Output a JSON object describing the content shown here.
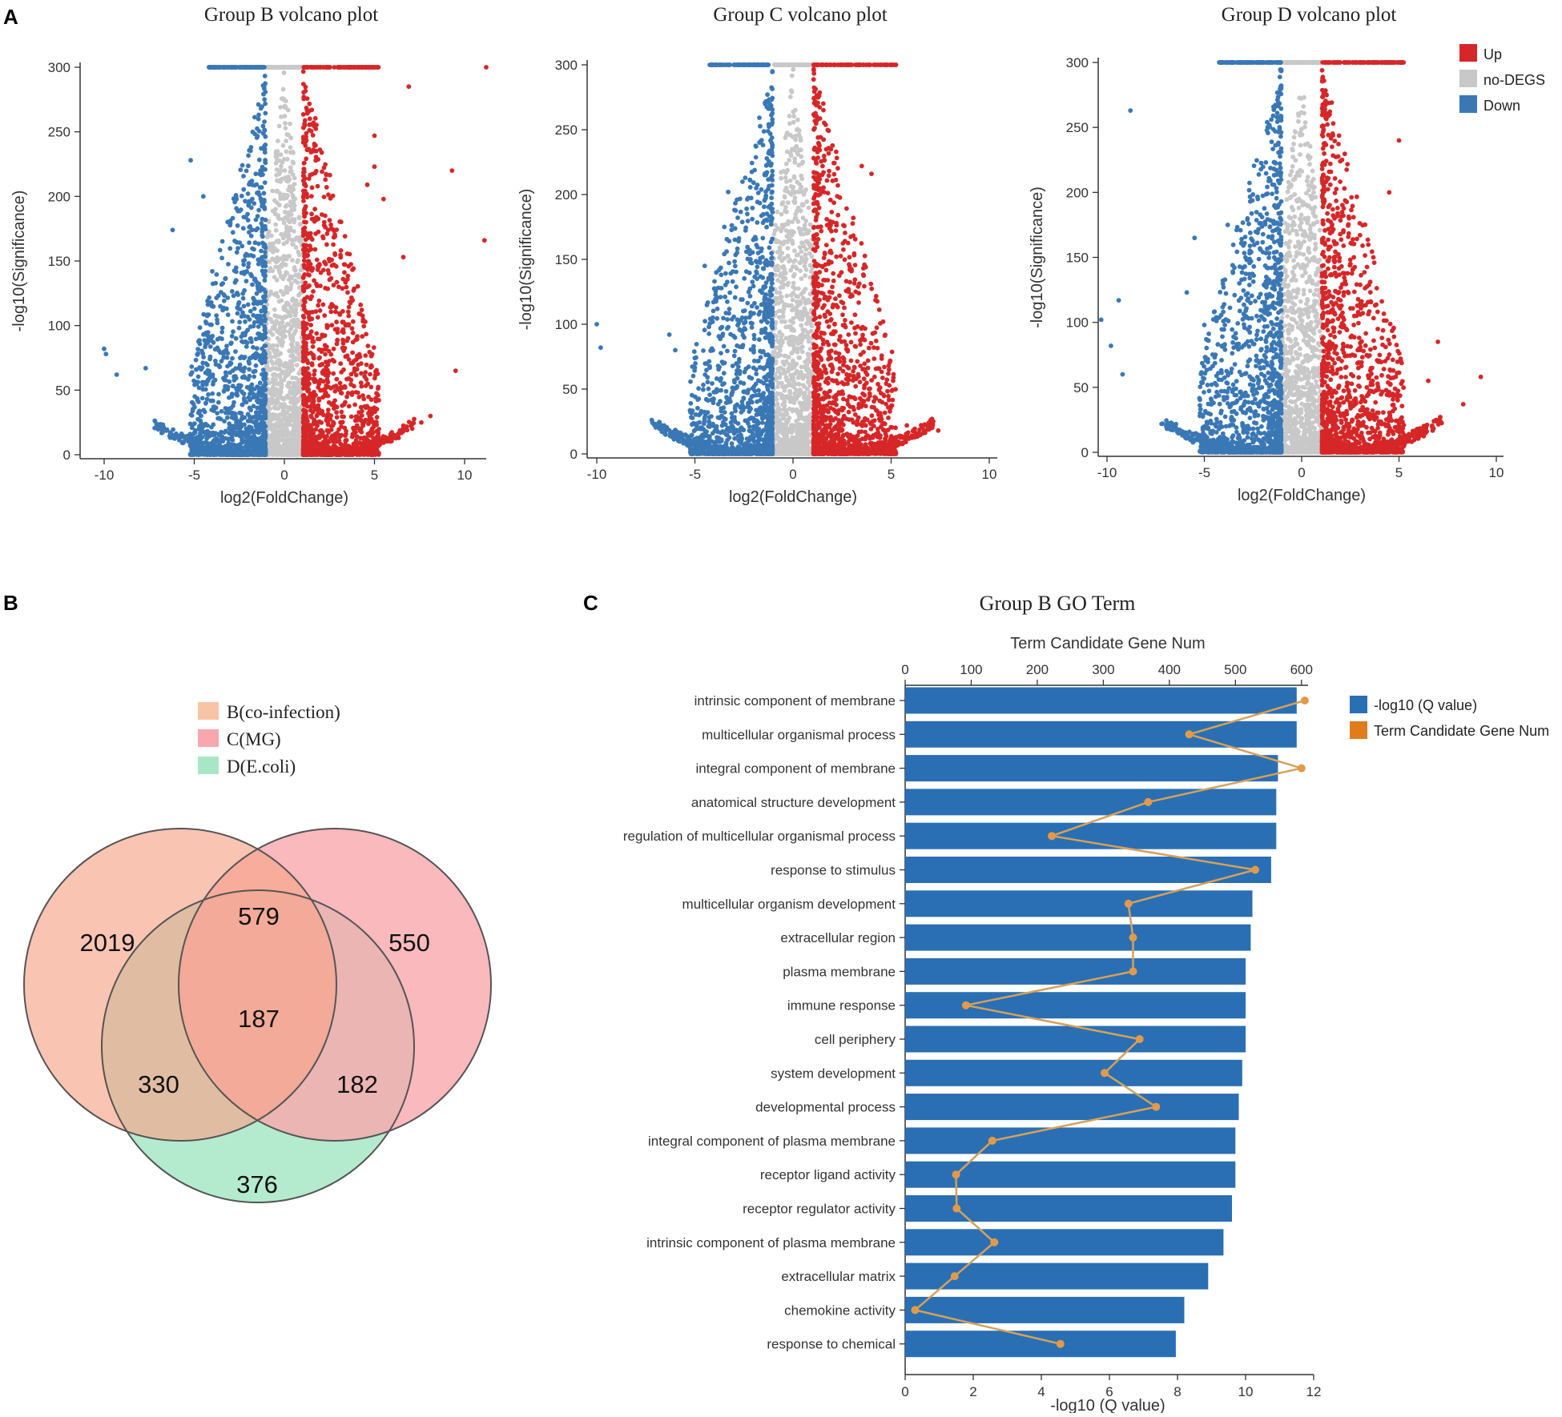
{
  "colors": {
    "up": "#d62728",
    "nodegs": "#c8c8c8",
    "down": "#3a78b5",
    "venn_b": "#f7c4a5",
    "venn_c": "#f7a7ad",
    "venn_d": "#a7e7c6",
    "bar": "#2a6fb3",
    "line": "#e07b1e",
    "line_stroke": "#d4a15a"
  },
  "panels": {
    "a": "A",
    "b": "B",
    "c": "C"
  },
  "volcano_legend": [
    "Up",
    "no-DEGS",
    "Down"
  ],
  "chart_data": [
    {
      "type": "scatter",
      "id": "volcano-b",
      "title": "Group B volcano plot",
      "xlabel": "log2(FoldChange)",
      "ylabel": "-log10(Significance)",
      "xlim": [
        -11,
        11.2
      ],
      "ylim": [
        0,
        305
      ],
      "xticks": [
        -10,
        -5,
        0,
        5,
        10
      ],
      "yticks": [
        0,
        50,
        100,
        150,
        200,
        250,
        300
      ],
      "xright": 11.2,
      "seed": 11,
      "outliers_up": [
        [
          11.2,
          300
        ],
        [
          11.1,
          166
        ],
        [
          9.3,
          220
        ],
        [
          9.5,
          65
        ],
        [
          6.9,
          285
        ],
        [
          6.6,
          153
        ],
        [
          5,
          247
        ],
        [
          5,
          223
        ],
        [
          5.5,
          198
        ],
        [
          4.6,
          209
        ],
        [
          8.1,
          30
        ],
        [
          7.6,
          25
        ]
      ],
      "outliers_down": [
        [
          -10,
          82
        ],
        [
          -9.9,
          78
        ],
        [
          -9.3,
          62
        ],
        [
          -7.7,
          67
        ],
        [
          -6.2,
          174
        ],
        [
          -5.2,
          228
        ],
        [
          -4.5,
          200
        ],
        [
          -4,
          142
        ],
        [
          -3,
          181
        ]
      ]
    },
    {
      "type": "scatter",
      "id": "volcano-c",
      "title": "Group C volcano plot",
      "xlabel": "log2(FoldChange)",
      "ylabel": "-log10(Significance)",
      "xlim": [
        -10.2,
        10.4
      ],
      "ylim": [
        0,
        305
      ],
      "xticks": [
        -10,
        -5,
        0,
        5,
        10
      ],
      "yticks": [
        0,
        50,
        100,
        150,
        200,
        250,
        300
      ],
      "xright": 10.2,
      "seed": 23,
      "outliers_up": [
        [
          4.8,
          302
        ],
        [
          4,
          216
        ],
        [
          3.5,
          222
        ],
        [
          7.4,
          18
        ],
        [
          5.8,
          22
        ]
      ],
      "outliers_down": [
        [
          -10,
          100
        ],
        [
          -9.8,
          82
        ],
        [
          -6.3,
          92
        ],
        [
          -6,
          80
        ],
        [
          -4.5,
          145
        ],
        [
          -4,
          133
        ],
        [
          -3.5,
          175
        ],
        [
          -3.3,
          202
        ],
        [
          -3.8,
          128
        ]
      ]
    },
    {
      "type": "scatter",
      "id": "volcano-d",
      "title": "Group D volcano plot",
      "xlabel": "log2(FoldChange)",
      "ylabel": "-log10(Significance)",
      "xlim": [
        -10.8,
        10.3
      ],
      "ylim": [
        0,
        305
      ],
      "xticks": [
        -10,
        -5,
        0,
        5,
        10
      ],
      "yticks": [
        0,
        50,
        100,
        150,
        200,
        250,
        300
      ],
      "xright": 10.3,
      "seed": 37,
      "outliers_up": [
        [
          5,
          240
        ],
        [
          4.5,
          200
        ],
        [
          9.2,
          58
        ],
        [
          8.3,
          37
        ],
        [
          7,
          85
        ],
        [
          6.5,
          55
        ]
      ],
      "outliers_down": [
        [
          -10.3,
          102
        ],
        [
          -9.8,
          82
        ],
        [
          -9.4,
          117
        ],
        [
          -8.8,
          263
        ],
        [
          -9.2,
          60
        ],
        [
          -5.5,
          165
        ],
        [
          -5.9,
          123
        ],
        [
          -3.8,
          175
        ],
        [
          -3.2,
          130
        ],
        [
          -5,
          98
        ],
        [
          -4.5,
          108
        ]
      ]
    },
    {
      "type": "venn",
      "id": "venn",
      "legend": [
        "B(co-infection)",
        "C(MG)",
        "D(E.coli)"
      ],
      "regions": {
        "b_only": 2019,
        "c_only": 550,
        "d_only": 376,
        "bc": 579,
        "bd": 330,
        "cd": 182,
        "bcd": 187
      }
    },
    {
      "type": "bar",
      "id": "go-term",
      "title": "Group B GO Term",
      "top_xlabel": "Term Candidate Gene Num",
      "xlabel": "-log10 (Q value)",
      "xlim": [
        0,
        12
      ],
      "xticks": [
        0,
        2,
        4,
        6,
        8,
        10,
        12
      ],
      "top_xlim": [
        0,
        610
      ],
      "top_xticks": [
        0,
        100,
        200,
        300,
        400,
        500,
        600
      ],
      "legend": [
        "-log10 (Q value)",
        "Term Candidate Gene Num"
      ],
      "categories": [
        "intrinsic component of membrane",
        "multicellular organismal process",
        "integral component of membrane",
        "anatomical structure development",
        "regulation of multicellular organismal process",
        "response to stimulus",
        "multicellular organism development",
        "extracellular region",
        "plasma membrane",
        "immune response",
        "cell periphery",
        "system development",
        "developmental process",
        "integral component of plasma membrane",
        "receptor ligand activity",
        "receptor regulator activity",
        "intrinsic component of plasma membrane",
        "extracellular matrix",
        "chemokine activity",
        "response to chemical"
      ],
      "values": [
        11.5,
        11.5,
        10.95,
        10.9,
        10.9,
        10.75,
        10.2,
        10.15,
        10.0,
        10.0,
        10.0,
        9.9,
        9.8,
        9.7,
        9.7,
        9.6,
        9.35,
        8.9,
        8.2,
        7.95
      ],
      "gene_num": [
        605,
        430,
        600,
        368,
        222,
        530,
        338,
        345,
        345,
        92,
        355,
        302,
        380,
        132,
        77,
        78,
        135,
        75,
        15,
        235
      ]
    }
  ]
}
